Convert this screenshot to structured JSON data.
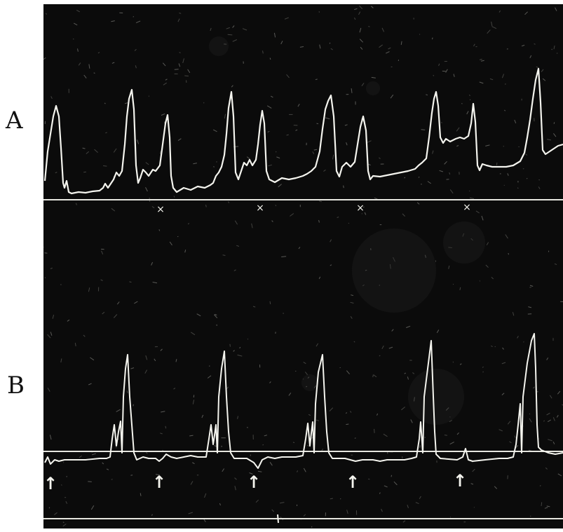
{
  "figure": {
    "labels": {
      "a": "A",
      "b": "B"
    },
    "colors": {
      "background": "#ffffff",
      "panel": "#0b0b0b",
      "trace": "#f4f4ee",
      "label": "#111111"
    },
    "trace_a": {
      "markers": "×",
      "marker_count": 4,
      "spike_count": 10
    },
    "trace_b": {
      "markers": "↑",
      "marker_count": 5,
      "spike_count": 5
    }
  }
}
